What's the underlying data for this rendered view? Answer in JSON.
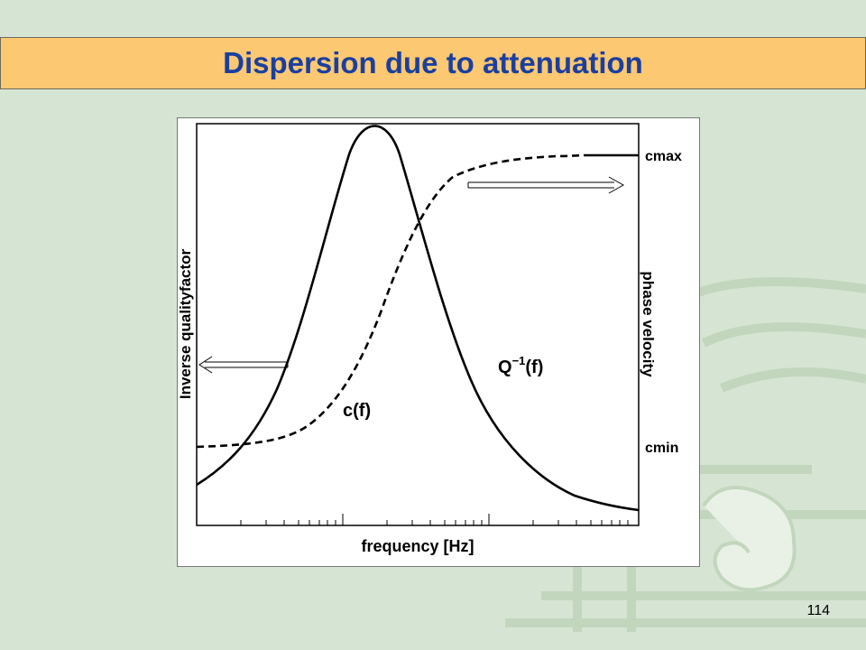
{
  "title": "Dispersion due to attenuation",
  "page_number": "114",
  "colors": {
    "title_background": "#fcc871",
    "title_text": "#1a3fa0",
    "slide_background": "#d6e5d3",
    "pattern": "#bfd3ba"
  },
  "figure": {
    "x_axis_label": "frequency [Hz]",
    "y_axis_left_label": "Inverse qualityfactor",
    "y_axis_right_label": "phase velocity",
    "right_tick_top": "cmax",
    "right_tick_bottom": "cmin",
    "curve_q_label": "Q",
    "curve_q_sup": "−1",
    "curve_q_arg": "(f)",
    "curve_c_label": "c(f)",
    "icons": [
      "arrow-left-icon",
      "arrow-right-icon"
    ]
  }
}
